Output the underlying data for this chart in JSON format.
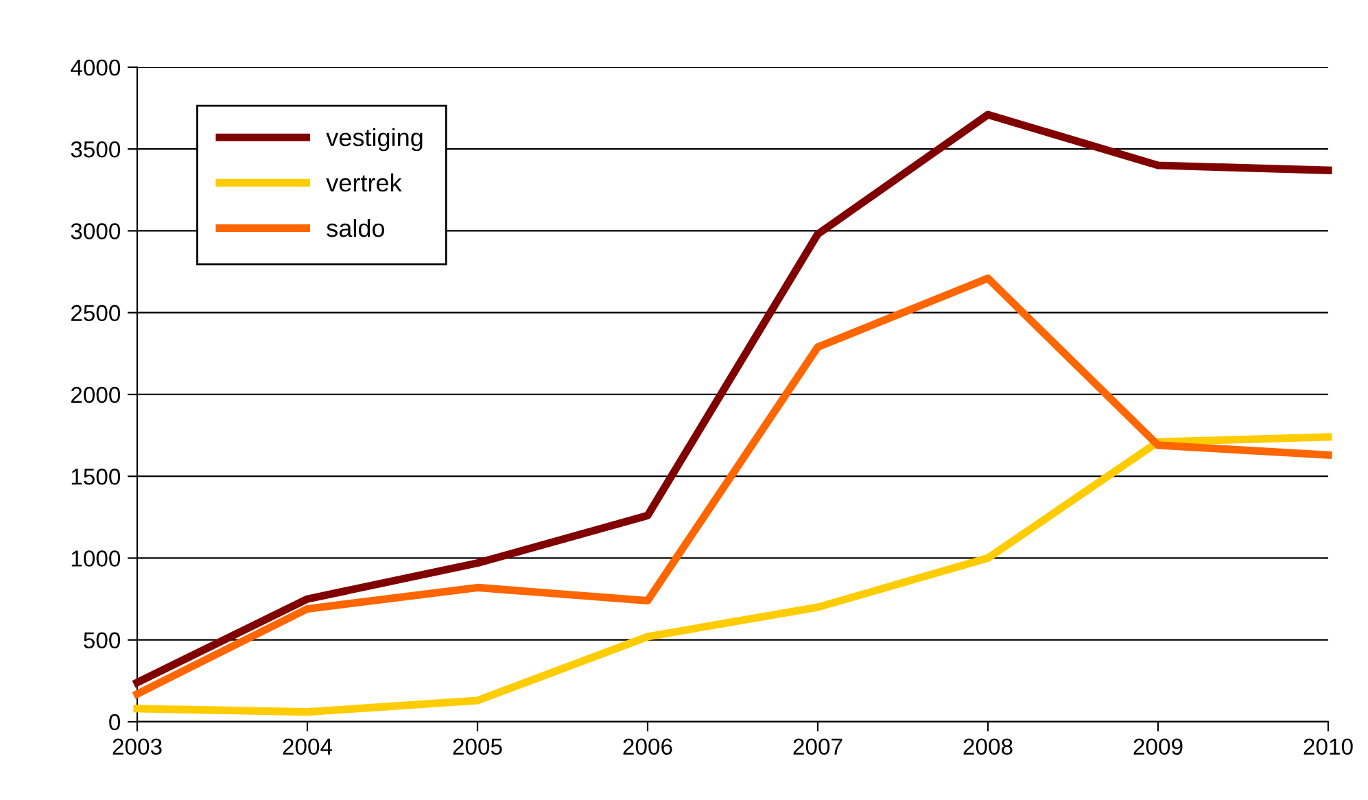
{
  "chart_data": {
    "type": "line",
    "x": [
      2003,
      2004,
      2005,
      2006,
      2007,
      2008,
      2009,
      2010
    ],
    "series": [
      {
        "name": "vestiging",
        "color": "#800000",
        "values": [
          240,
          750,
          970,
          1260,
          2980,
          3710,
          3400,
          3370
        ]
      },
      {
        "name": "vertrek",
        "color": "#ffcc00",
        "values": [
          80,
          60,
          130,
          520,
          700,
          1000,
          1710,
          1740
        ]
      },
      {
        "name": "saldo",
        "color": "#ff6600",
        "values": [
          170,
          690,
          820,
          740,
          2290,
          2710,
          1690,
          1630
        ]
      }
    ],
    "xlim": [
      2003,
      2010
    ],
    "xticks": [
      2003,
      2004,
      2005,
      2006,
      2007,
      2008,
      2009,
      2010
    ],
    "ylim": [
      0,
      4000
    ],
    "yticks": [
      0,
      500,
      1000,
      1500,
      2000,
      2500,
      3000,
      3500,
      4000
    ],
    "grid": "y",
    "legend": "top left",
    "marker": "none",
    "line_style": "solid"
  }
}
